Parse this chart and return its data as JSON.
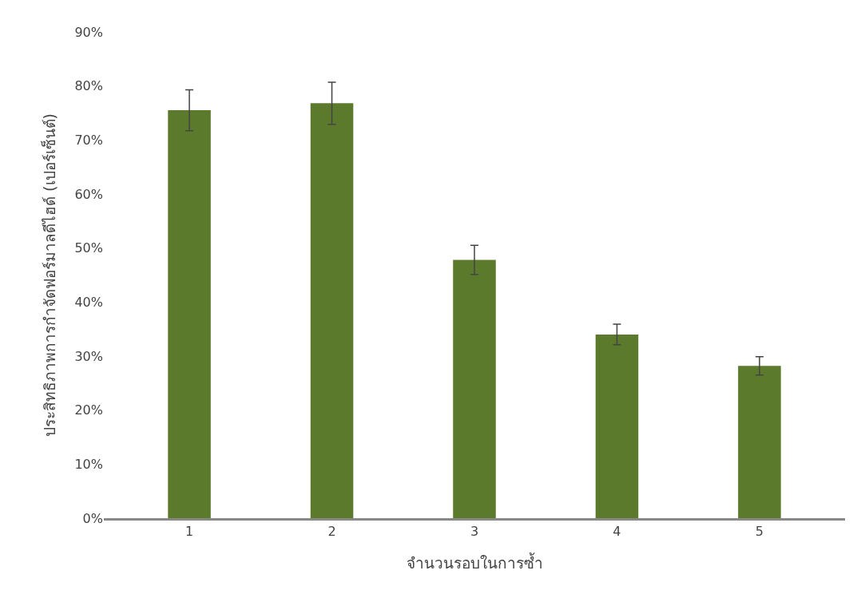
{
  "chart_data": {
    "type": "bar",
    "xlabel": "จำนวนรอบในการซ้ำ",
    "ylabel": "ประสิทธิภาพการกำจัดฟอร์มาลดีไฮด์ (เปอร์เซ็นต์)",
    "categories": [
      "1",
      "2",
      "3",
      "4",
      "5"
    ],
    "values": [
      75.5,
      76.8,
      47.8,
      34.0,
      28.2
    ],
    "errors": [
      3.8,
      3.9,
      2.7,
      1.9,
      1.7
    ],
    "color": "#5b7a2c",
    "ylim": [
      0,
      90
    ],
    "yticks": [
      {
        "value": 0,
        "label": "0%"
      },
      {
        "value": 10,
        "label": "10%"
      },
      {
        "value": 20,
        "label": "20%"
      },
      {
        "value": 30,
        "label": "30%"
      },
      {
        "value": 40,
        "label": "40%"
      },
      {
        "value": 50,
        "label": "50%"
      },
      {
        "value": 60,
        "label": "60%"
      },
      {
        "value": 70,
        "label": "70%"
      },
      {
        "value": 80,
        "label": "80%"
      },
      {
        "value": 90,
        "label": "90%"
      }
    ],
    "grid": false
  }
}
